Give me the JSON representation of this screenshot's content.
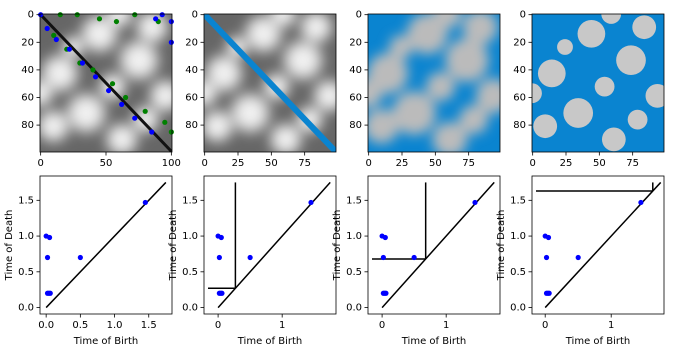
{
  "chart_data": [
    {
      "type": "image",
      "xlim": [
        -0.5,
        100.5
      ],
      "ylim": [
        99.5,
        -0.5
      ],
      "xticks": [
        0,
        50,
        100
      ],
      "yticks": [
        0,
        20,
        40,
        60,
        80
      ],
      "series": [
        {
          "color": "#008000",
          "x": [
            15,
            28,
            45,
            58,
            72,
            90,
            10,
            20,
            30,
            40,
            55,
            65,
            80,
            95,
            100
          ],
          "y": [
            0,
            0,
            3,
            5,
            0,
            5,
            15,
            25,
            35,
            40,
            50,
            60,
            70,
            78,
            85
          ]
        },
        {
          "color": "#0000ff",
          "x": [
            0,
            5,
            12,
            22,
            32,
            42,
            52,
            62,
            72,
            85,
            93,
            100,
            100,
            88
          ],
          "y": [
            0,
            10,
            18,
            25,
            35,
            45,
            55,
            65,
            75,
            85,
            0,
            5,
            20,
            3
          ]
        }
      ]
    },
    {
      "type": "image",
      "xlim": [
        -0.5,
        98.5
      ],
      "ylim": [
        99.5,
        -0.5
      ],
      "xticks": [
        0,
        25,
        50,
        75
      ],
      "yticks": [
        0,
        20,
        40,
        60,
        80
      ]
    },
    {
      "type": "image",
      "xlim": [
        -0.5,
        98.5
      ],
      "ylim": [
        99.5,
        -0.5
      ],
      "xticks": [
        0,
        25,
        50,
        75
      ],
      "yticks": [
        0,
        20,
        40,
        60,
        80
      ]
    },
    {
      "type": "image",
      "xlim": [
        -0.5,
        98.5
      ],
      "ylim": [
        99.5,
        -0.5
      ],
      "xticks": [
        0,
        25,
        50,
        75
      ],
      "yticks": [
        0,
        20,
        40,
        60,
        80
      ]
    },
    {
      "type": "scatter",
      "xlabel": "Time of Birth",
      "ylabel": "Time of Death",
      "color": "#0000ff",
      "x": [
        0.0,
        0.05,
        0.02,
        0.02,
        0.04,
        0.06,
        0.5,
        1.45
      ],
      "y": [
        1.0,
        0.98,
        0.7,
        0.2,
        0.2,
        0.2,
        0.7,
        1.47
      ],
      "diagonal": [
        0,
        1.75
      ],
      "xlim": [
        -0.09,
        1.84
      ],
      "ylim": [
        -0.09,
        1.84
      ],
      "xticks": [
        {
          "value": 0,
          "label": "0.0"
        },
        {
          "value": 0.5,
          "label": "0.5"
        },
        {
          "value": 1,
          "label": "1.0"
        },
        {
          "value": 1.5,
          "label": "1.5"
        }
      ],
      "yticks": [
        {
          "value": 0,
          "label": "0.0"
        },
        {
          "value": 0.5,
          "label": "0.5"
        },
        {
          "value": 1,
          "label": "1.0"
        },
        {
          "value": 1.5,
          "label": "1.5"
        }
      ]
    },
    {
      "type": "scatter",
      "xlabel": "Time of Birth",
      "ylabel": "Time of Death",
      "color": "#0000ff",
      "x": [
        0.0,
        0.05,
        0.02,
        0.02,
        0.04,
        0.06,
        0.5,
        1.45
      ],
      "y": [
        1.0,
        0.98,
        0.7,
        0.2,
        0.2,
        0.2,
        0.7,
        1.47
      ],
      "diagonal": [
        0,
        1.75
      ],
      "threshold": 0.27,
      "xlim": [
        -0.22,
        1.84
      ],
      "ylim": [
        -0.09,
        1.84
      ],
      "xticks": [
        0,
        1
      ],
      "yticks": [
        {
          "value": 0,
          "label": "0.0"
        },
        {
          "value": 0.5,
          "label": "0.5"
        },
        {
          "value": 1,
          "label": "1.0"
        },
        {
          "value": 1.5,
          "label": "1.5"
        }
      ]
    },
    {
      "type": "scatter",
      "xlabel": "Time of Birth",
      "ylabel": "Time of Death",
      "color": "#0000ff",
      "x": [
        0.0,
        0.05,
        0.02,
        0.02,
        0.04,
        0.06,
        0.5,
        1.45
      ],
      "y": [
        1.0,
        0.98,
        0.7,
        0.2,
        0.2,
        0.2,
        0.7,
        1.47
      ],
      "diagonal": [
        0,
        1.75
      ],
      "threshold": 0.68,
      "xlim": [
        -0.22,
        1.84
      ],
      "ylim": [
        -0.09,
        1.84
      ],
      "xticks": [
        0,
        1
      ],
      "yticks": [
        {
          "value": 0,
          "label": "0.0"
        },
        {
          "value": 0.5,
          "label": "0.5"
        },
        {
          "value": 1,
          "label": "1.0"
        },
        {
          "value": 1.5,
          "label": "1.5"
        }
      ]
    },
    {
      "type": "scatter",
      "xlabel": "Time of Birth",
      "ylabel": "Time of Death",
      "color": "#0000ff",
      "x": [
        0.0,
        0.05,
        0.02,
        0.02,
        0.04,
        0.06,
        0.5,
        1.45
      ],
      "y": [
        1.0,
        0.98,
        0.7,
        0.2,
        0.2,
        0.2,
        0.7,
        1.47
      ],
      "diagonal": [
        0,
        1.75
      ],
      "threshold": 1.63,
      "xlim": [
        -0.2,
        1.8
      ],
      "ylim": [
        -0.09,
        1.84
      ],
      "xticks": [
        0,
        1
      ],
      "yticks": [
        {
          "value": 0,
          "label": "0.0"
        },
        {
          "value": 0.5,
          "label": "0.5"
        },
        {
          "value": 1,
          "label": "1.0"
        },
        {
          "value": 1.5,
          "label": "1.5"
        }
      ]
    }
  ]
}
